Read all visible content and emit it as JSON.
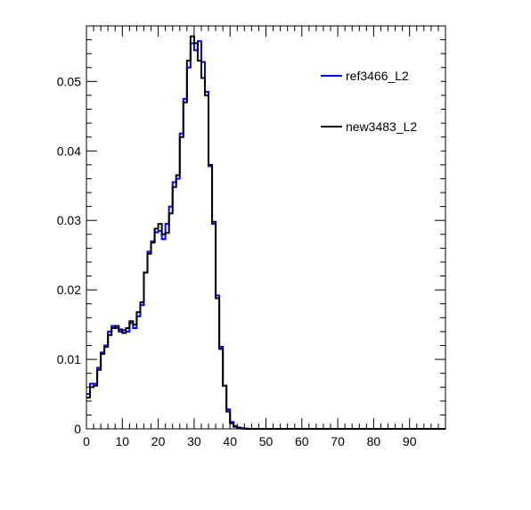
{
  "chart_data": {
    "type": "histogram",
    "title": "",
    "xlabel": "",
    "ylabel": "",
    "xlim": [
      0,
      100
    ],
    "ylim": [
      0,
      0.058
    ],
    "bin_width": 1,
    "x_ticks": [
      0,
      10,
      20,
      30,
      40,
      50,
      60,
      70,
      80,
      90
    ],
    "y_ticks": [
      0,
      0.01,
      0.02,
      0.03,
      0.04,
      0.05
    ],
    "y_tick_labels": [
      "0",
      "0.01",
      "0.02",
      "0.03",
      "0.04",
      "0.05"
    ],
    "grid": false,
    "legend_position": "top-right",
    "series": [
      {
        "name": "ref3466_L2",
        "color": "#0000ff",
        "values": [
          0.005,
          0.0065,
          0.0065,
          0.0088,
          0.011,
          0.012,
          0.014,
          0.0148,
          0.0145,
          0.014,
          0.0142,
          0.014,
          0.0152,
          0.0145,
          0.0162,
          0.0178,
          0.0225,
          0.0255,
          0.027,
          0.0283,
          0.0285,
          0.0273,
          0.0295,
          0.032,
          0.0355,
          0.036,
          0.0425,
          0.0475,
          0.052,
          0.0555,
          0.0545,
          0.0558,
          0.0528,
          0.0485,
          0.0378,
          0.0295,
          0.0192,
          0.0118,
          0.0062,
          0.0028,
          0.001,
          0.0004,
          0.0002,
          0.0001,
          5e-05,
          0,
          0,
          0,
          0,
          0,
          0,
          0,
          0,
          0,
          0,
          0,
          0,
          0,
          0,
          0,
          0,
          0,
          0,
          0,
          0,
          0,
          0,
          0,
          0,
          0,
          0,
          0,
          0,
          0,
          0,
          0,
          0,
          0,
          0,
          0,
          0,
          0,
          0,
          0,
          0,
          0,
          0,
          0,
          0,
          0,
          0,
          0,
          0,
          0,
          0,
          0,
          0,
          0,
          0,
          0
        ]
      },
      {
        "name": "new3483_L2",
        "color": "#000000",
        "values": [
          0.0045,
          0.006,
          0.0062,
          0.0085,
          0.0108,
          0.0118,
          0.0135,
          0.0145,
          0.0148,
          0.0143,
          0.0138,
          0.0145,
          0.0155,
          0.015,
          0.0168,
          0.0182,
          0.0225,
          0.0252,
          0.0268,
          0.0288,
          0.0295,
          0.028,
          0.0282,
          0.031,
          0.0348,
          0.0365,
          0.042,
          0.047,
          0.053,
          0.0565,
          0.0555,
          0.053,
          0.0505,
          0.048,
          0.038,
          0.0298,
          0.0188,
          0.0115,
          0.0062,
          0.0025,
          0.0008,
          0.0003,
          0.0001,
          5e-05,
          0,
          0,
          0,
          0,
          0,
          0,
          0,
          0,
          0,
          0,
          0,
          0,
          0,
          0,
          0,
          0,
          0,
          0,
          0,
          0,
          0,
          0,
          0,
          0,
          0,
          0,
          0,
          0,
          0,
          0,
          0,
          0,
          0,
          0,
          0,
          0,
          0,
          0,
          0,
          0,
          0,
          0,
          0,
          0,
          0,
          0,
          0,
          0,
          0,
          0,
          0,
          0,
          0,
          0,
          0,
          0
        ]
      }
    ]
  }
}
